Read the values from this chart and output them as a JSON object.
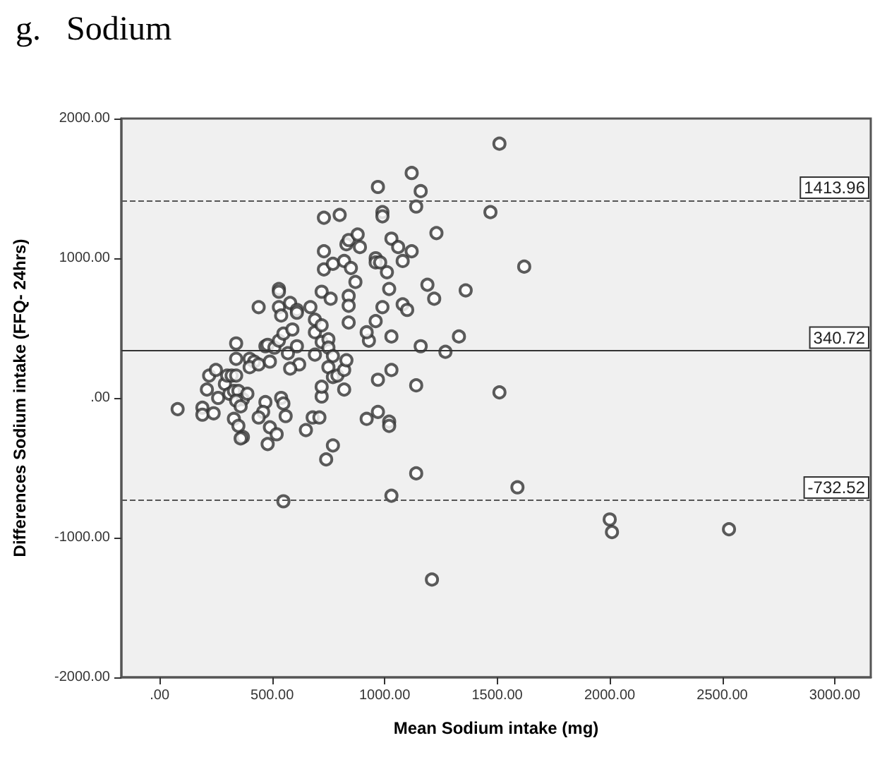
{
  "chart_data": {
    "type": "scatter",
    "title": "g.   Sodium",
    "xlabel": "Mean Sodium intake (mg)",
    "ylabel": "Differences Sodium intake (FFQ- 24hrs)",
    "xlim": [
      -170,
      3160
    ],
    "ylim": [
      -2000,
      2000
    ],
    "xticks": [
      {
        "value": 0,
        "label": ".00"
      },
      {
        "value": 500,
        "label": "500.00"
      },
      {
        "value": 1000,
        "label": "1000.00"
      },
      {
        "value": 1500,
        "label": "1500.00"
      },
      {
        "value": 2000,
        "label": "2000.00"
      },
      {
        "value": 2500,
        "label": "2500.00"
      },
      {
        "value": 3000,
        "label": "3000.00"
      }
    ],
    "yticks": [
      {
        "value": -2000,
        "label": "-2000.00"
      },
      {
        "value": -1000,
        "label": "-1000.00"
      },
      {
        "value": 0,
        "label": ".00"
      },
      {
        "value": 1000,
        "label": "1000.00"
      },
      {
        "value": 2000,
        "label": "2000.00"
      }
    ],
    "grid": false,
    "marker": "circle",
    "ref_lines": [
      {
        "axis": "y",
        "value": 1413.96,
        "label": "1413.96",
        "line_style": "dashed",
        "color": "#555555"
      },
      {
        "axis": "y",
        "value": 340.72,
        "label": "340.72",
        "line_style": "solid",
        "color": "#333333"
      },
      {
        "axis": "y",
        "value": -732.52,
        "label": "-732.52",
        "line_style": "dashed",
        "color": "#555555"
      }
    ],
    "series": [
      {
        "color": "#333333",
        "x": [
          80,
          190,
          190,
          240,
          210,
          220,
          250,
          260,
          290,
          300,
          320,
          340,
          310,
          330,
          350,
          370,
          390,
          340,
          360,
          330,
          350,
          370,
          360,
          340,
          340,
          400,
          420,
          400,
          440,
          440,
          470,
          480,
          490,
          510,
          470,
          460,
          440,
          490,
          520,
          480,
          540,
          550,
          560,
          530,
          550,
          530,
          530,
          530,
          540,
          580,
          610,
          610,
          590,
          570,
          610,
          620,
          580,
          650,
          670,
          690,
          690,
          680,
          710,
          690,
          720,
          720,
          720,
          720,
          730,
          730,
          730,
          720,
          760,
          750,
          750,
          770,
          750,
          770,
          790,
          820,
          830,
          820,
          770,
          740,
          770,
          800,
          820,
          830,
          840,
          880,
          890,
          850,
          840,
          840,
          840,
          870,
          550,
          920,
          930,
          920,
          970,
          970,
          960,
          990,
          1020,
          1010,
          970,
          990,
          990,
          1030,
          960,
          960,
          980,
          1030,
          1020,
          1020,
          1030,
          1120,
          1160,
          1140,
          1230,
          1120,
          1080,
          1060,
          1080,
          1100,
          1190,
          1220,
          1160,
          1140,
          1030,
          1510,
          1470,
          1620,
          1360,
          1330,
          1270,
          1510,
          1590,
          2000,
          2010,
          2530,
          1210,
          1140
        ],
        "values": [
          -80,
          -70,
          -120,
          -110,
          60,
          160,
          200,
          0,
          100,
          160,
          160,
          160,
          30,
          50,
          50,
          -10,
          30,
          -20,
          -60,
          -150,
          -200,
          -280,
          -290,
          390,
          280,
          280,
          260,
          220,
          240,
          650,
          370,
          380,
          260,
          360,
          -30,
          -100,
          -140,
          -210,
          -260,
          -330,
          0,
          -40,
          -130,
          410,
          460,
          650,
          780,
          760,
          590,
          680,
          630,
          610,
          490,
          320,
          370,
          240,
          210,
          -230,
          650,
          560,
          470,
          -140,
          -140,
          310,
          400,
          10,
          80,
          520,
          1290,
          1050,
          920,
          760,
          710,
          420,
          360,
          300,
          220,
          150,
          160,
          200,
          270,
          60,
          -340,
          -440,
          960,
          1310,
          980,
          1100,
          1130,
          1170,
          1080,
          930,
          730,
          660,
          540,
          830,
          -740,
          -150,
          410,
          470,
          130,
          -100,
          550,
          650,
          780,
          900,
          1510,
          1330,
          1300,
          1140,
          1000,
          970,
          970,
          440,
          -170,
          -200,
          -700,
          1610,
          1480,
          1370,
          1180,
          1050,
          980,
          1080,
          670,
          630,
          810,
          710,
          370,
          90,
          200,
          1820,
          1330,
          940,
          770,
          440,
          330,
          40,
          -640,
          -870,
          -960,
          -940,
          -1300,
          -540
        ]
      }
    ]
  }
}
